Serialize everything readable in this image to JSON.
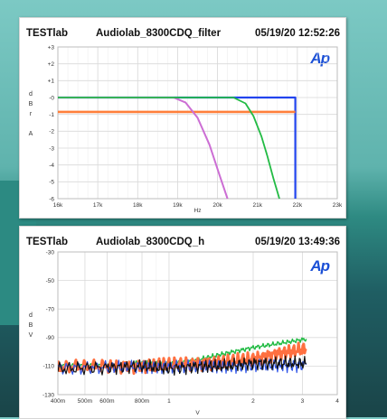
{
  "panels": [
    {
      "header": {
        "lab": "TESTlab",
        "name": "Audiolab_8300CDQ_filter",
        "date": "05/19/20 12:52:26"
      },
      "logo": "Ap",
      "chart_data": {
        "type": "line",
        "ylabel_chars": [
          "d",
          "B",
          "r",
          "",
          "A"
        ],
        "xlabel": "Hz",
        "x_ticks": [
          {
            "v": 16000,
            "label": "16k"
          },
          {
            "v": 17000,
            "label": "17k"
          },
          {
            "v": 18000,
            "label": "18k"
          },
          {
            "v": 19000,
            "label": "19k"
          },
          {
            "v": 20000,
            "label": "20k"
          },
          {
            "v": 21000,
            "label": "21k"
          },
          {
            "v": 22000,
            "label": "22k"
          },
          {
            "v": 23000,
            "label": "23k"
          }
        ],
        "y_ticks": [
          {
            "v": 3,
            "label": "+3"
          },
          {
            "v": 2,
            "label": "+2"
          },
          {
            "v": 1,
            "label": "+1"
          },
          {
            "v": 0,
            "label": "-0"
          },
          {
            "v": -1,
            "label": "-1"
          },
          {
            "v": -2,
            "label": "-2"
          },
          {
            "v": -3,
            "label": "-3"
          },
          {
            "v": -4,
            "label": "-4"
          },
          {
            "v": -5,
            "label": "-5"
          },
          {
            "v": -6,
            "label": "-6"
          }
        ],
        "xlim": [
          16000,
          23000
        ],
        "ylim": [
          -6,
          3
        ],
        "grid": true,
        "series": [
          {
            "color": "#2244ee",
            "width": 2.2,
            "x": [
              16000,
              21950,
              21950
            ],
            "y": [
              0,
              0,
              -6
            ]
          },
          {
            "color": "#ff7f3a",
            "width": 2.6,
            "x": [
              16000,
              21950
            ],
            "y": [
              -0.85,
              -0.85
            ]
          },
          {
            "color": "#cc6ed4",
            "width": 2,
            "x": [
              16000,
              18900,
              19200,
              19500,
              19800,
              20050,
              20250
            ],
            "y": [
              0,
              0,
              -0.3,
              -1.2,
              -2.8,
              -4.6,
              -6
            ]
          },
          {
            "color": "#22bb44",
            "width": 1.8,
            "x": [
              16000,
              20400,
              20700,
              20900,
              21100,
              21250,
              21400,
              21550
            ],
            "y": [
              0,
              0,
              -0.35,
              -1.1,
              -2.3,
              -3.5,
              -4.8,
              -6
            ]
          }
        ]
      }
    },
    {
      "header": {
        "lab": "TESTlab",
        "name": "Audiolab_8300CDQ_h",
        "date": "05/19/20 13:49:36"
      },
      "logo": "Ap",
      "chart_data": {
        "type": "line",
        "ylabel_chars": [
          "d",
          "B",
          "V"
        ],
        "xlabel": "V",
        "xscale": "log",
        "x_ticks": [
          {
            "v": 0.4,
            "label": "400m"
          },
          {
            "v": 0.5,
            "label": "500m"
          },
          {
            "v": 0.6,
            "label": "600m"
          },
          {
            "v": 0.8,
            "label": "800m"
          },
          {
            "v": 1,
            "label": "1"
          },
          {
            "v": 2,
            "label": "2"
          },
          {
            "v": 3,
            "label": "3"
          },
          {
            "v": 4,
            "label": "4"
          }
        ],
        "y_ticks": [
          {
            "v": -30,
            "label": "-30"
          },
          {
            "v": -50,
            "label": "-50"
          },
          {
            "v": -70,
            "label": "-70"
          },
          {
            "v": -90,
            "label": "-90"
          },
          {
            "v": -110,
            "label": "-110"
          },
          {
            "v": -130,
            "label": "-130"
          }
        ],
        "xlim": [
          0.4,
          4
        ],
        "ylim": [
          -130,
          -30
        ],
        "grid": true,
        "series": [
          {
            "color": "#22bb44",
            "width": 1.4,
            "x": [
              0.4,
              0.6,
              0.8,
              1,
              1.3,
              1.6,
              2,
              2.5,
              3.1
            ],
            "y": [
              -110,
              -109,
              -108,
              -108,
              -105,
              -101,
              -97,
              -94,
              -91
            ]
          },
          {
            "color": "#ff7040",
            "width": 3,
            "x": [
              0.4,
              0.6,
              0.8,
              1,
              1.3,
              1.6,
              2,
              2.5,
              3.1
            ],
            "y": [
              -111,
              -110,
              -110,
              -109,
              -108,
              -107,
              -105,
              -101,
              -98
            ]
          },
          {
            "color": "#2f55e8",
            "width": 1.2,
            "x": [
              0.4,
              0.6,
              0.8,
              1,
              1.3,
              1.6,
              2,
              2.5,
              3.1
            ],
            "y": [
              -111,
              -111,
              -111,
              -110,
              -111,
              -110,
              -110,
              -110,
              -109
            ]
          },
          {
            "color": "#111111",
            "width": 1.2,
            "x": [
              0.4,
              0.6,
              0.8,
              1,
              1.3,
              1.6,
              2,
              2.5,
              3.1
            ],
            "y": [
              -112,
              -111,
              -110,
              -112,
              -110,
              -110,
              -108,
              -108,
              -108
            ]
          }
        ]
      }
    }
  ]
}
